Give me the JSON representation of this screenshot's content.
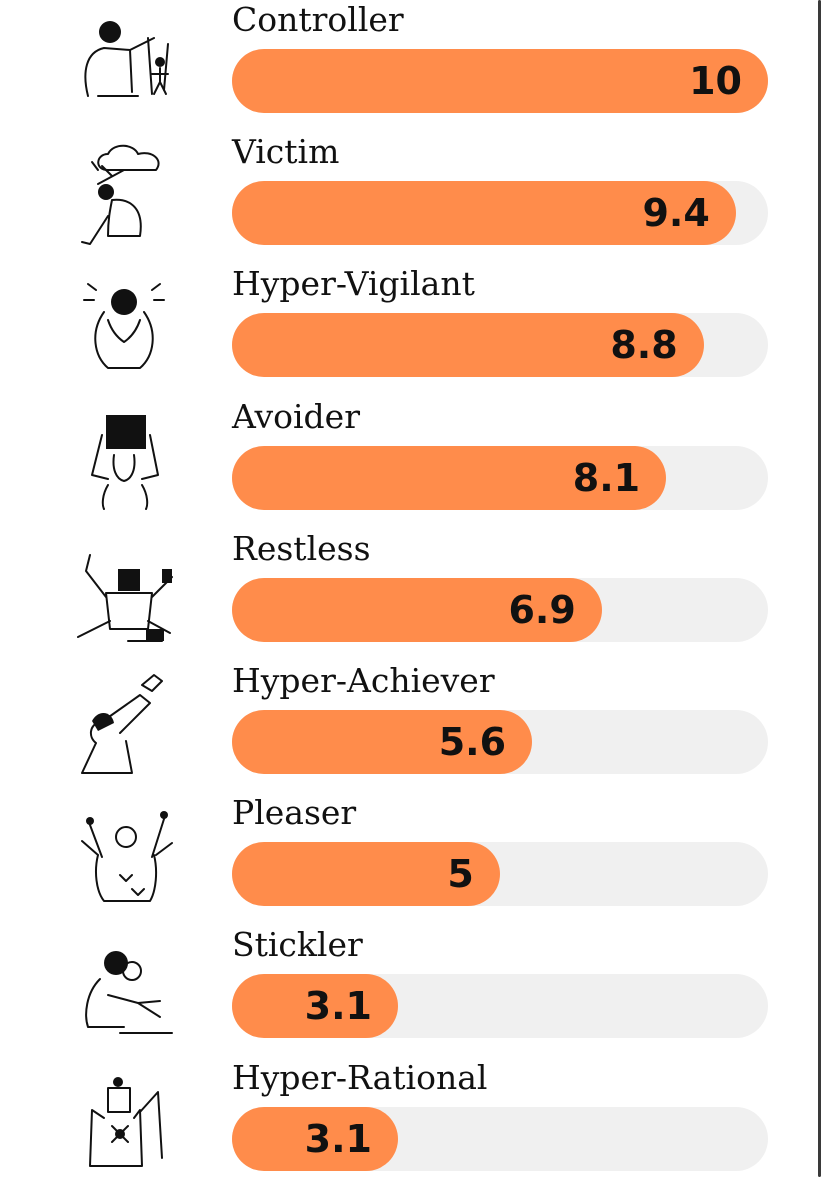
{
  "chart_data": {
    "type": "bar",
    "orientation": "horizontal",
    "categories": [
      "Controller",
      "Victim",
      "Hyper-Vigilant",
      "Avoider",
      "Restless",
      "Hyper-Achiever",
      "Pleaser",
      "Stickler",
      "Hyper-Rational"
    ],
    "values": [
      10,
      9.4,
      8.8,
      8.1,
      6.9,
      5.6,
      5,
      3.1,
      3.1
    ],
    "value_labels": [
      "10",
      "9.4",
      "8.8",
      "8.1",
      "6.9",
      "5.6",
      "5",
      "3.1",
      "3.1"
    ],
    "xlim": [
      0,
      10
    ],
    "title": "",
    "xlabel": "",
    "ylabel": "",
    "grid": false,
    "legend": "none"
  },
  "illustrations": [
    "controller-illustration-icon",
    "victim-illustration-icon",
    "hyper-vigilant-illustration-icon",
    "avoider-illustration-icon",
    "restless-illustration-icon",
    "hyper-achiever-illustration-icon",
    "pleaser-illustration-icon",
    "stickler-illustration-icon",
    "hyper-rational-illustration-icon"
  ],
  "colors": {
    "bar_fill": "#ff8c4b",
    "bar_track": "#f0f0f0",
    "text": "#111111"
  }
}
